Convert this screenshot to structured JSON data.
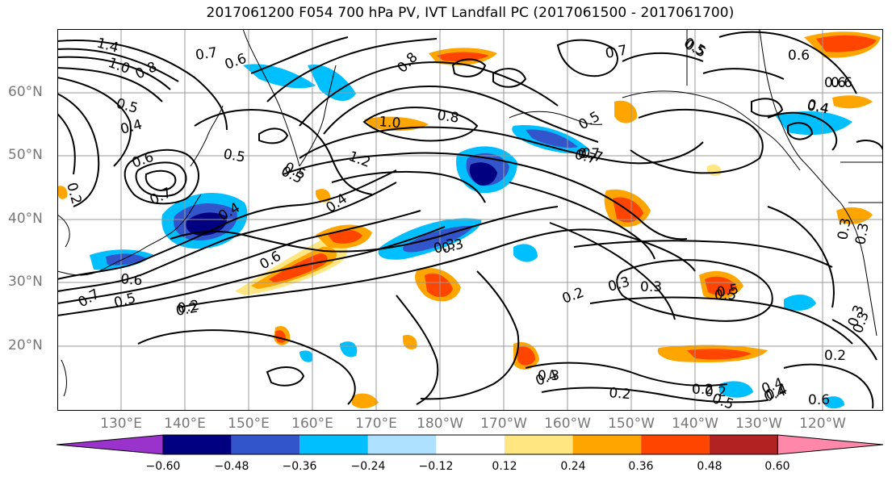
{
  "title": "2017061200 F054 700 hPa PV, IVT Landfall PC (2017061500 - 2017061700)",
  "lat_labels": [
    "60°N",
    "50°N",
    "40°N",
    "30°N",
    "20°N"
  ],
  "lon_labels": [
    "130°E",
    "140°E",
    "150°E",
    "160°E",
    "170°E",
    "180°W",
    "170°W",
    "160°W",
    "150°W",
    "140°W",
    "130°W",
    "120°W"
  ],
  "colorbar": {
    "ticks": [
      "−0.60",
      "−0.48",
      "−0.36",
      "−0.24",
      "−0.12",
      "0.12",
      "0.24",
      "0.36",
      "0.48",
      "0.60"
    ],
    "colors": [
      "#9933cc",
      "#000080",
      "#3355cc",
      "#00bfff",
      "#aee0ff",
      "#ffffff",
      "#ffe680",
      "#ffa500",
      "#ff4500",
      "#b22222",
      "#ff88aa"
    ]
  },
  "contour_labels": [
    "1.4",
    "1.0",
    "0.8",
    "0.7",
    "0.6",
    "0.5",
    "0.4",
    "0.5",
    "0.6",
    "0.7",
    "0.5",
    "0.4",
    "0.2",
    "0.6",
    "0.7",
    "0.5",
    "1.0",
    "0.8",
    "1.2",
    "0.5",
    "0.4",
    "0.7",
    "0.8",
    "0.7",
    "0.5",
    "0.6",
    "0.6",
    "0.4",
    "0.7",
    "0.5",
    "0.2",
    "0.3",
    "0.5",
    "0.2",
    "0.3",
    "0.6",
    "0.3",
    "0.4",
    "0.6",
    "0.5",
    "0.4",
    "0.2",
    "0.2",
    "0.2",
    "0.3",
    "0.5",
    "0.3",
    "0.3",
    "0.2",
    "0.4",
    "0.2",
    "0.3",
    "0.3",
    "0.7",
    "0.6",
    "0.5",
    "0.4",
    "0.3",
    "0.4"
  ]
}
